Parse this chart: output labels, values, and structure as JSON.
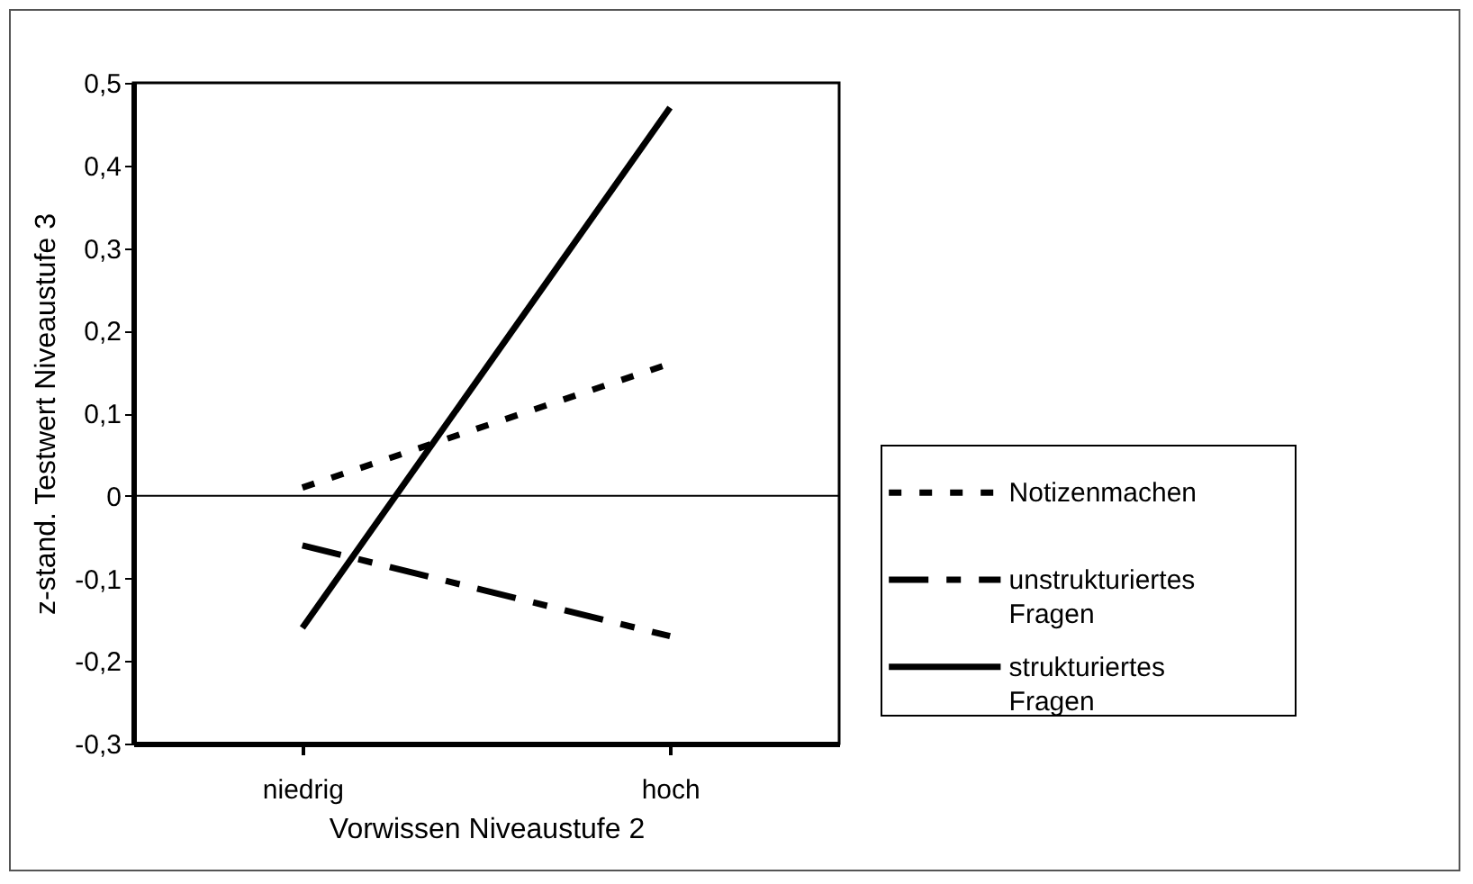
{
  "chart_data": {
    "type": "line",
    "xlabel": "Vorwissen Niveaustufe 2",
    "ylabel": "z-stand. Testwert Niveaustufe 3",
    "categories": [
      "niedrig",
      "hoch"
    ],
    "series": [
      {
        "name": "Notizenmachen",
        "color": "#000000",
        "line_style": "dotted",
        "values": [
          0.01,
          0.16
        ]
      },
      {
        "name": "unstrukturiertes Fragen",
        "color": "#000000",
        "line_style": "dashed",
        "values": [
          -0.06,
          -0.17
        ]
      },
      {
        "name": "strukturiertes Fragen",
        "color": "#000000",
        "line_style": "solid",
        "values": [
          -0.16,
          0.47
        ]
      }
    ],
    "ylim": [
      -0.3,
      0.5
    ],
    "yticks": [
      {
        "value": -0.3,
        "label": "-0,3"
      },
      {
        "value": -0.2,
        "label": "-0,2"
      },
      {
        "value": -0.1,
        "label": "-0,1"
      },
      0,
      {
        "value": 0.1,
        "label": "0,1"
      },
      {
        "value": 0.2,
        "label": "0,2"
      },
      {
        "value": 0.3,
        "label": "0,3"
      },
      {
        "value": 0.4,
        "label": "0,4"
      },
      {
        "value": 0.5,
        "label": "0,5"
      }
    ],
    "ref_lines": [
      {
        "axis": "y",
        "value": 0,
        "color": "#000000"
      }
    ],
    "grid": false,
    "legend": "right",
    "marker": "none"
  }
}
